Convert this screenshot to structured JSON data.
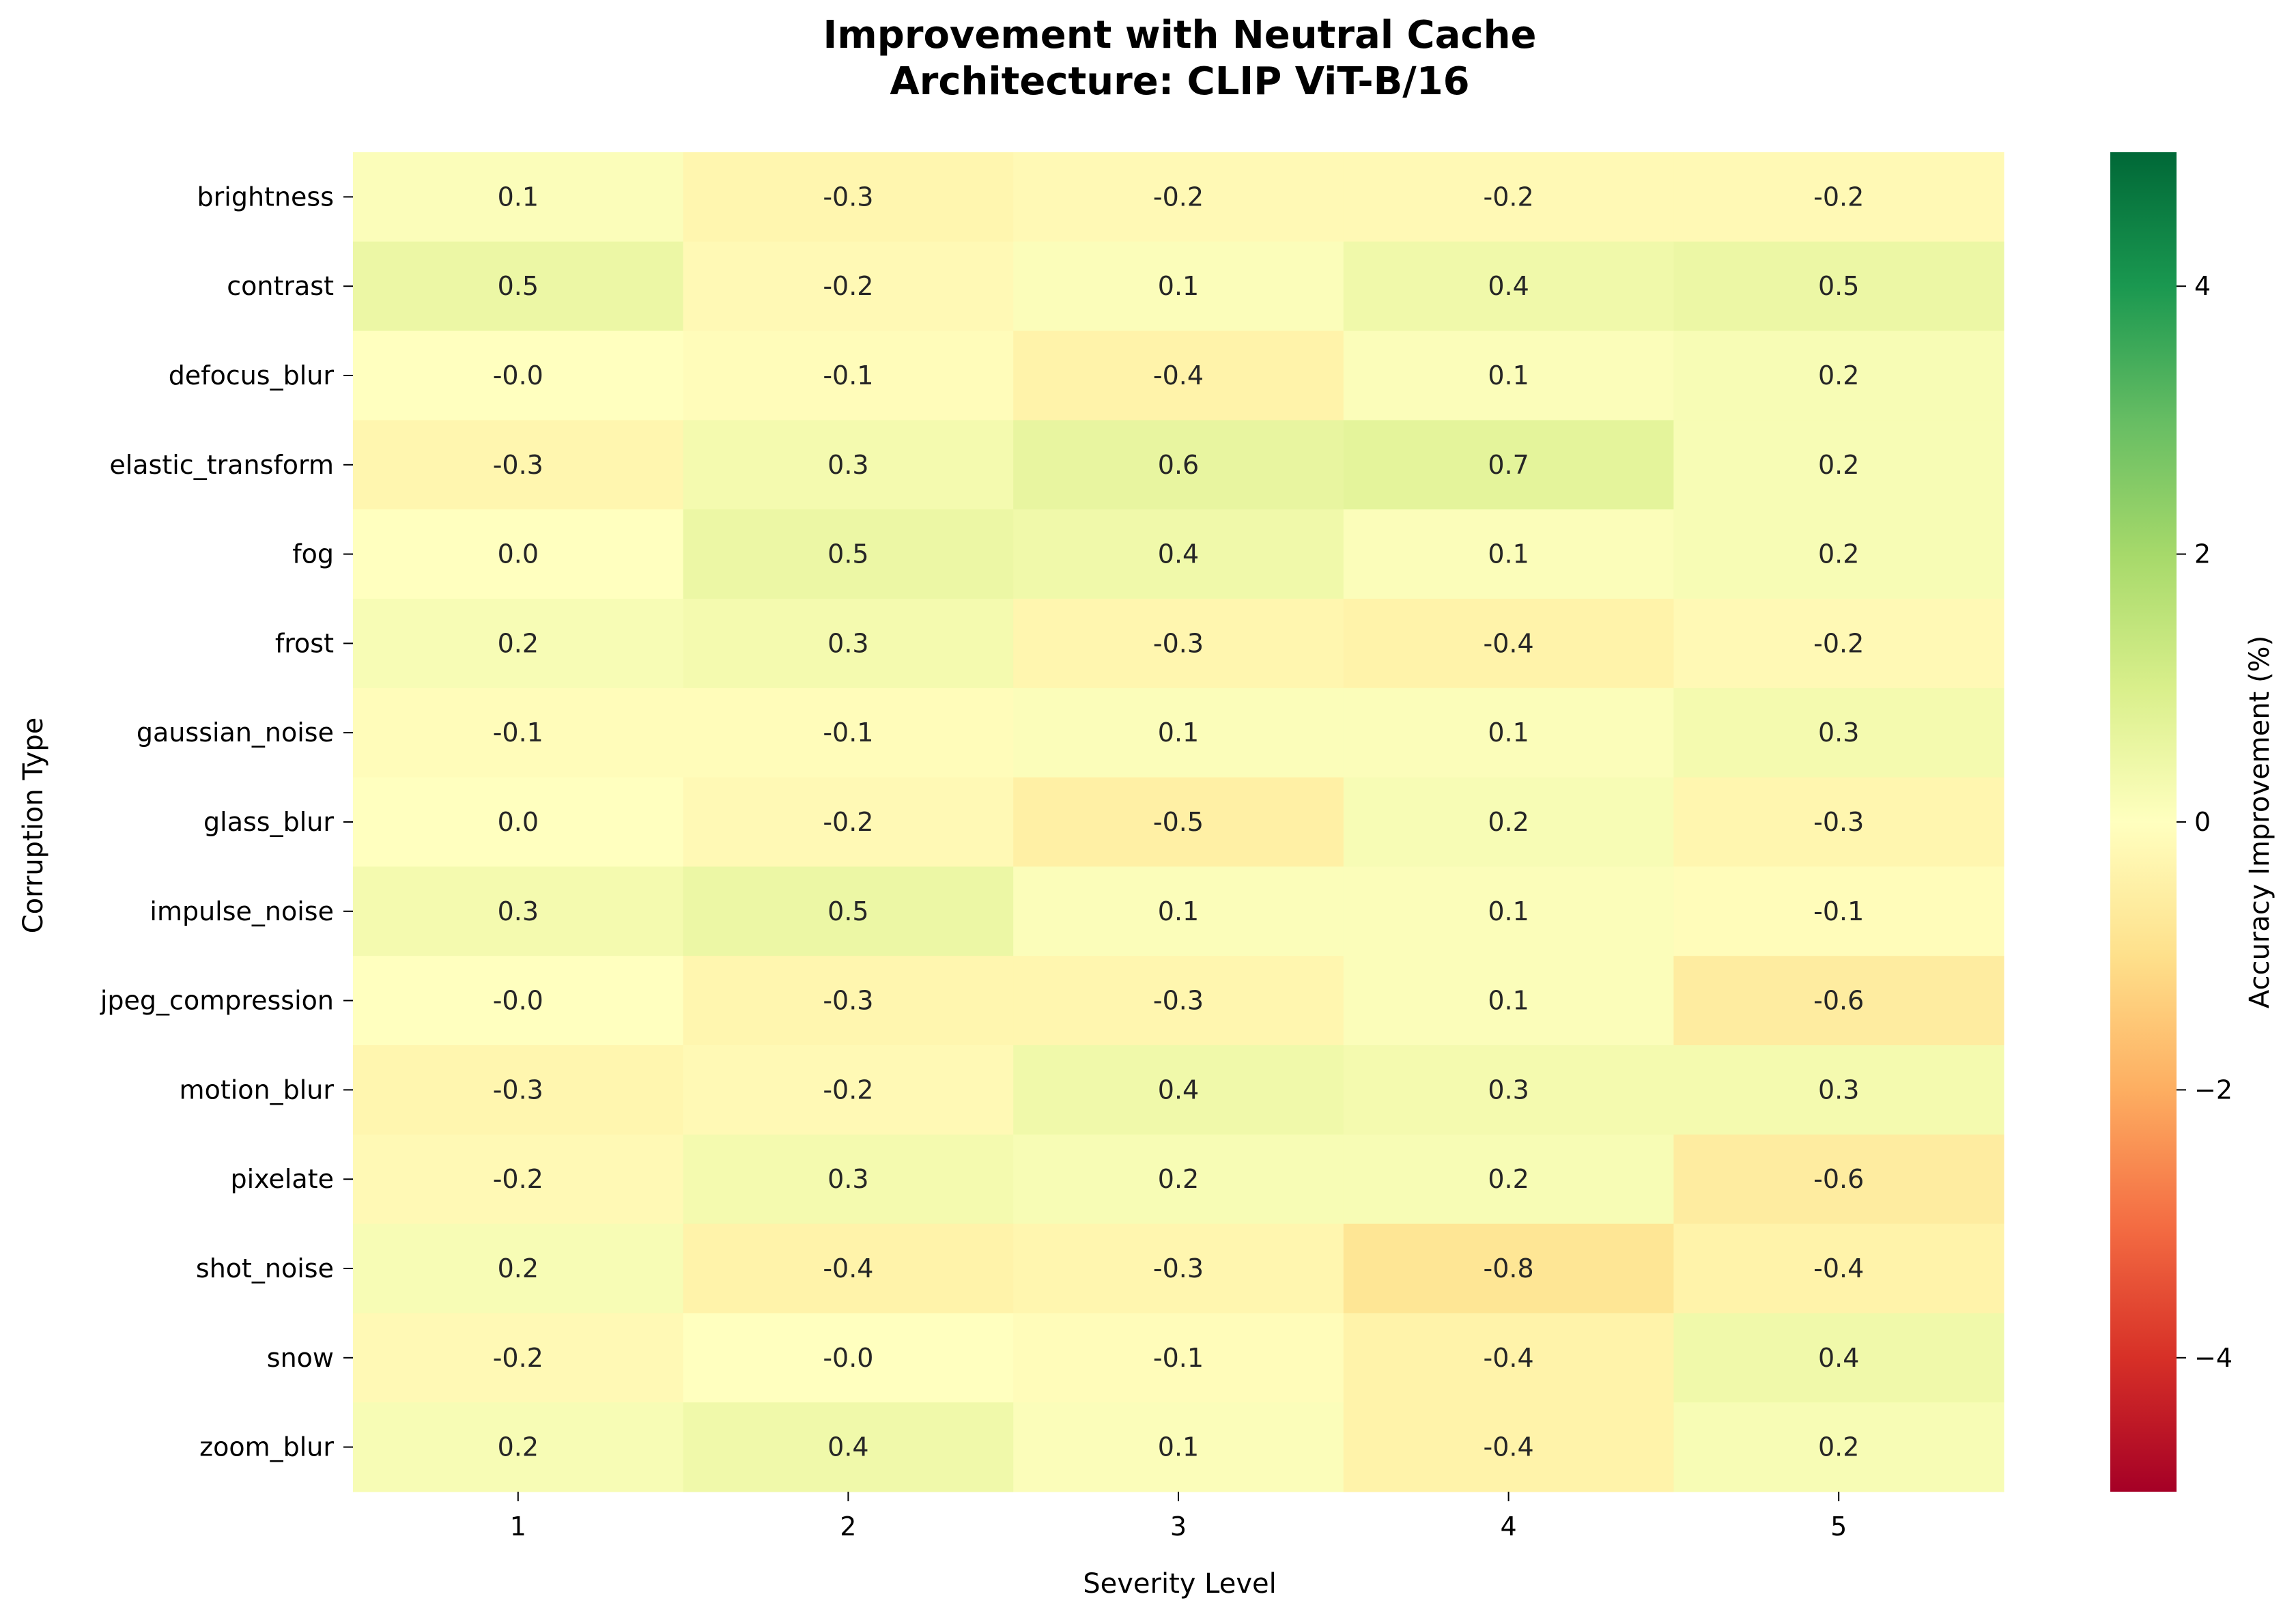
{
  "chart_data": {
    "type": "heatmap",
    "title": "Improvement with Neutral Cache",
    "subtitle": "Architecture: CLIP ViT-B/16",
    "xlabel": "Severity Level",
    "ylabel": "Corruption Type",
    "x_categories": [
      "1",
      "2",
      "3",
      "4",
      "5"
    ],
    "y_categories": [
      "brightness",
      "contrast",
      "defocus_blur",
      "elastic_transform",
      "fog",
      "frost",
      "gaussian_noise",
      "glass_blur",
      "impulse_noise",
      "jpeg_compression",
      "motion_blur",
      "pixelate",
      "shot_noise",
      "snow",
      "zoom_blur"
    ],
    "values": [
      [
        0.1,
        -0.3,
        -0.2,
        -0.2,
        -0.2
      ],
      [
        0.5,
        -0.2,
        0.1,
        0.4,
        0.5
      ],
      [
        -0.0,
        -0.1,
        -0.4,
        0.1,
        0.2
      ],
      [
        -0.3,
        0.3,
        0.6,
        0.7,
        0.2
      ],
      [
        0.0,
        0.5,
        0.4,
        0.1,
        0.2
      ],
      [
        0.2,
        0.3,
        -0.3,
        -0.4,
        -0.2
      ],
      [
        -0.1,
        -0.1,
        0.1,
        0.1,
        0.3
      ],
      [
        0.0,
        -0.2,
        -0.5,
        0.2,
        -0.3
      ],
      [
        0.3,
        0.5,
        0.1,
        0.1,
        -0.1
      ],
      [
        -0.0,
        -0.3,
        -0.3,
        0.1,
        -0.6
      ],
      [
        -0.3,
        -0.2,
        0.4,
        0.3,
        0.3
      ],
      [
        -0.2,
        0.3,
        0.2,
        0.2,
        -0.6
      ],
      [
        0.2,
        -0.4,
        -0.3,
        -0.8,
        -0.4
      ],
      [
        -0.2,
        -0.0,
        -0.1,
        -0.4,
        0.4
      ],
      [
        0.2,
        0.4,
        0.1,
        -0.4,
        0.2
      ]
    ],
    "value_labels": [
      [
        "0.1",
        "-0.3",
        "-0.2",
        "-0.2",
        "-0.2"
      ],
      [
        "0.5",
        "-0.2",
        "0.1",
        "0.4",
        "0.5"
      ],
      [
        "-0.0",
        "-0.1",
        "-0.4",
        "0.1",
        "0.2"
      ],
      [
        "-0.3",
        "0.3",
        "0.6",
        "0.7",
        "0.2"
      ],
      [
        "0.0",
        "0.5",
        "0.4",
        "0.1",
        "0.2"
      ],
      [
        "0.2",
        "0.3",
        "-0.3",
        "-0.4",
        "-0.2"
      ],
      [
        "-0.1",
        "-0.1",
        "0.1",
        "0.1",
        "0.3"
      ],
      [
        "0.0",
        "-0.2",
        "-0.5",
        "0.2",
        "-0.3"
      ],
      [
        "0.3",
        "0.5",
        "0.1",
        "0.1",
        "-0.1"
      ],
      [
        "-0.0",
        "-0.3",
        "-0.3",
        "0.1",
        "-0.6"
      ],
      [
        "-0.3",
        "-0.2",
        "0.4",
        "0.3",
        "0.3"
      ],
      [
        "-0.2",
        "0.3",
        "0.2",
        "0.2",
        "-0.6"
      ],
      [
        "0.2",
        "-0.4",
        "-0.3",
        "-0.8",
        "-0.4"
      ],
      [
        "-0.2",
        "-0.0",
        "-0.1",
        "-0.4",
        "0.4"
      ],
      [
        "0.2",
        "0.4",
        "0.1",
        "-0.4",
        "0.2"
      ]
    ],
    "colorbar": {
      "label": "Accuracy Improvement (%)",
      "range": [
        -5,
        5
      ],
      "ticks": [
        -4,
        -2,
        0,
        2,
        4
      ],
      "tick_labels": [
        "−4",
        "−2",
        "0",
        "2",
        "4"
      ],
      "colormap": "RdYlGn",
      "colormap_stops": [
        "#a50026",
        "#d73027",
        "#f46d43",
        "#fdae61",
        "#fee08b",
        "#ffffbf",
        "#d9ef8b",
        "#a6d96a",
        "#66bd63",
        "#1a9850",
        "#006837"
      ]
    },
    "grid": false
  }
}
